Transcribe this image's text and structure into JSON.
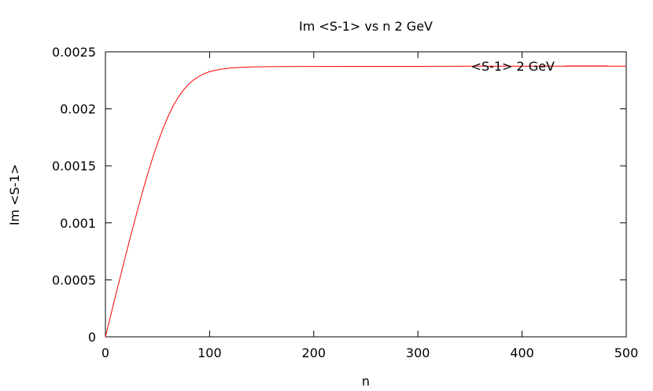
{
  "chart_data": {
    "type": "line",
    "title": "Im <S-1> vs n 2 GeV",
    "xlabel": "n",
    "ylabel": "Im <S-1>",
    "xlim": [
      0,
      500
    ],
    "ylim": [
      0,
      0.0025
    ],
    "x_ticks": [
      "0",
      "100",
      "200",
      "300",
      "400",
      "500"
    ],
    "y_ticks": [
      "0",
      "0.0005",
      "0.001",
      "0.0015",
      "0.002",
      "0.0025"
    ],
    "grid": false,
    "legend_position": "top-right",
    "series": [
      {
        "name": "<S-1> 2  GeV",
        "color": "#ff0000",
        "x": [
          0,
          5,
          10,
          15,
          20,
          25,
          30,
          35,
          40,
          45,
          50,
          55,
          60,
          65,
          70,
          75,
          80,
          85,
          90,
          95,
          100,
          110,
          120,
          130,
          140,
          150,
          175,
          200,
          250,
          300,
          350,
          400,
          450,
          500
        ],
        "y": [
          0,
          0.000185,
          0.000371,
          0.000553,
          0.000735,
          0.000912,
          0.001085,
          0.001252,
          0.001411,
          0.00156,
          0.001697,
          0.001821,
          0.00193,
          0.002024,
          0.002102,
          0.002166,
          0.002217,
          0.002256,
          0.002286,
          0.002309,
          0.002326,
          0.002347,
          0.002358,
          0.002364,
          0.002367,
          0.002369,
          0.002371,
          0.002372,
          0.002373,
          0.002373,
          0.002374,
          0.002374,
          0.002374,
          0.002374
        ]
      }
    ]
  }
}
